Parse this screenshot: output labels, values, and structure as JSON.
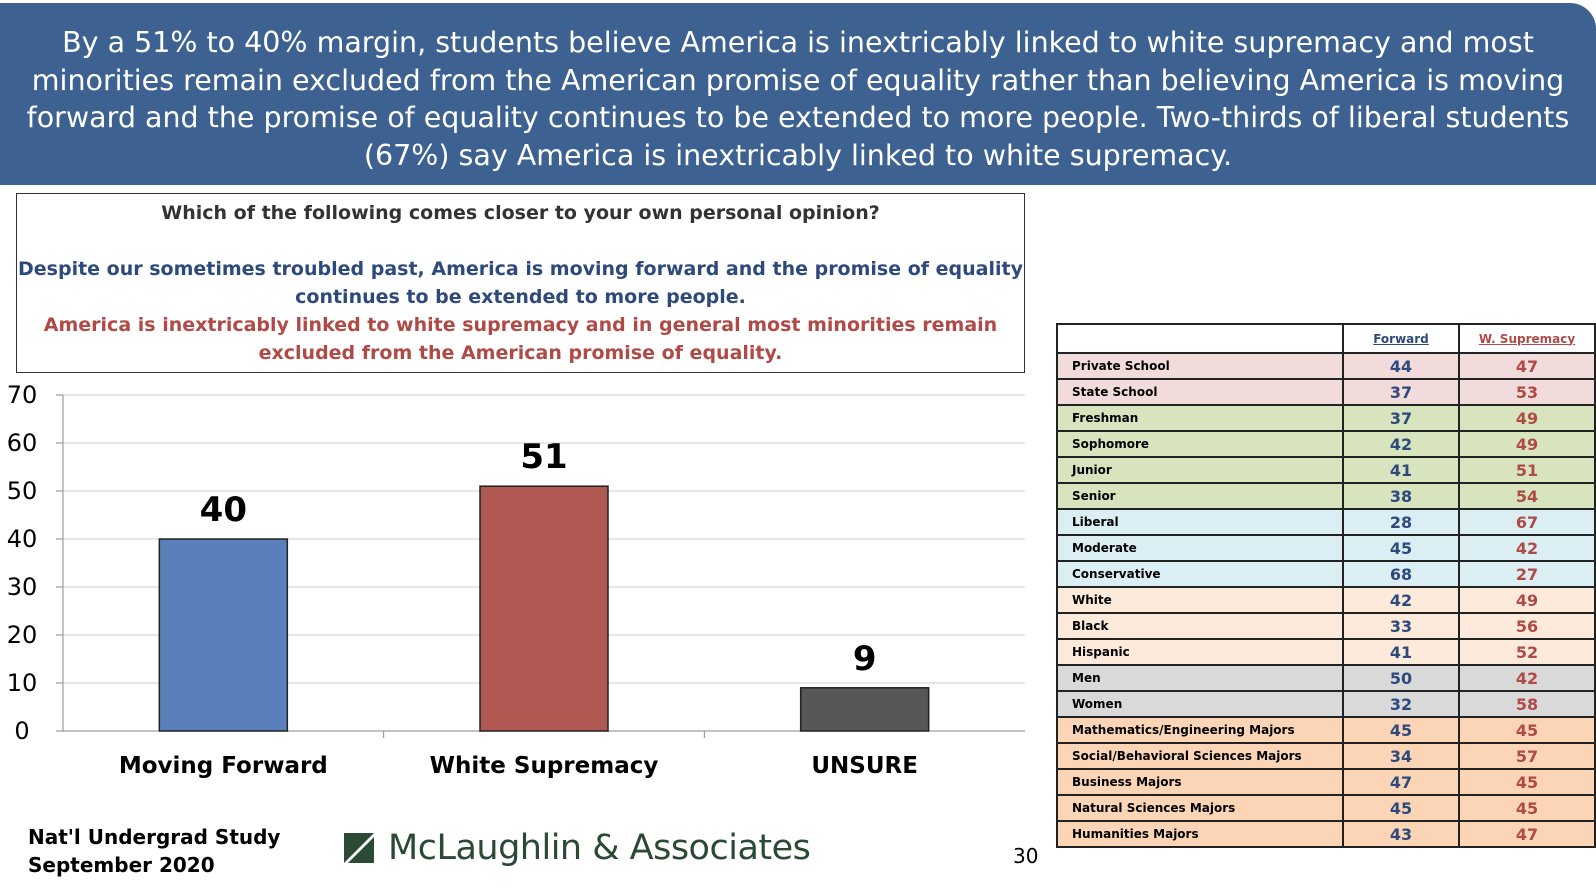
{
  "header": {
    "text": "By a 51% to 40% margin, students believe America is inextricably linked to white supremacy and most minorities remain excluded from the American promise of equality rather than believing America is moving forward and the promise of equality continues to be extended to more people. Two-thirds of liberal students (67%) say America is inextricably linked to white supremacy."
  },
  "question": {
    "prompt": "Which of the following comes closer to your own personal opinion?",
    "option_forward": "Despite our sometimes troubled past, America is moving forward and the promise of equality continues to be extended to more people.",
    "option_supremacy": "America is inextricably linked to white supremacy and in general most minorities remain excluded from the American promise of equality."
  },
  "chart_data": {
    "type": "bar",
    "title": "",
    "xlabel": "",
    "ylabel": "",
    "categories": [
      "Moving Forward",
      "White Supremacy",
      "UNSURE"
    ],
    "values": [
      40,
      51,
      9
    ],
    "ylim": [
      0,
      70
    ],
    "yticks": [
      0,
      10,
      20,
      30,
      40,
      50,
      60,
      70
    ],
    "bar_colors": [
      "#5a7fbb",
      "#b05852",
      "#575757"
    ],
    "grid": true
  },
  "table": {
    "col_forward": "Forward",
    "col_supremacy": "W. Supremacy",
    "rows": [
      {
        "label": "Private School",
        "forward": "44",
        "supremacy": "47",
        "bg": "#f2dcdb"
      },
      {
        "label": "State School",
        "forward": "37",
        "supremacy": "53",
        "bg": "#f2dcdb"
      },
      {
        "label": "Freshman",
        "forward": "37",
        "supremacy": "49",
        "bg": "#d7e4bd"
      },
      {
        "label": "Sophomore",
        "forward": "42",
        "supremacy": "49",
        "bg": "#d7e4bd"
      },
      {
        "label": "Junior",
        "forward": "41",
        "supremacy": "51",
        "bg": "#d7e4bd"
      },
      {
        "label": "Senior",
        "forward": "38",
        "supremacy": "54",
        "bg": "#d7e4bd"
      },
      {
        "label": "Liberal",
        "forward": "28",
        "supremacy": "67",
        "bg": "#dbeef4"
      },
      {
        "label": "Moderate",
        "forward": "45",
        "supremacy": "42",
        "bg": "#dbeef4"
      },
      {
        "label": "Conservative",
        "forward": "68",
        "supremacy": "27",
        "bg": "#dbeef4"
      },
      {
        "label": "White",
        "forward": "42",
        "supremacy": "49",
        "bg": "#fdeada"
      },
      {
        "label": "Black",
        "forward": "33",
        "supremacy": "56",
        "bg": "#fdeada"
      },
      {
        "label": "Hispanic",
        "forward": "41",
        "supremacy": "52",
        "bg": "#fdeada"
      },
      {
        "label": "Men",
        "forward": "50",
        "supremacy": "42",
        "bg": "#d9d9d9"
      },
      {
        "label": "Women",
        "forward": "32",
        "supremacy": "58",
        "bg": "#d9d9d9"
      },
      {
        "label": "Mathematics/Engineering Majors",
        "forward": "45",
        "supremacy": "45",
        "bg": "#fbd5b5"
      },
      {
        "label": "Social/Behavioral Sciences Majors",
        "forward": "34",
        "supremacy": "57",
        "bg": "#fbd5b5"
      },
      {
        "label": "Business Majors",
        "forward": "47",
        "supremacy": "45",
        "bg": "#fbd5b5"
      },
      {
        "label": "Natural Sciences Majors",
        "forward": "45",
        "supremacy": "45",
        "bg": "#fbd5b5"
      },
      {
        "label": "Humanities Majors",
        "forward": "43",
        "supremacy": "47",
        "bg": "#fbd5b5"
      }
    ]
  },
  "footer": {
    "line1": "Nat'l Undergrad Study",
    "line2": "September 2020",
    "logo_text": "McLaughlin & Associates",
    "page_number": "30"
  }
}
